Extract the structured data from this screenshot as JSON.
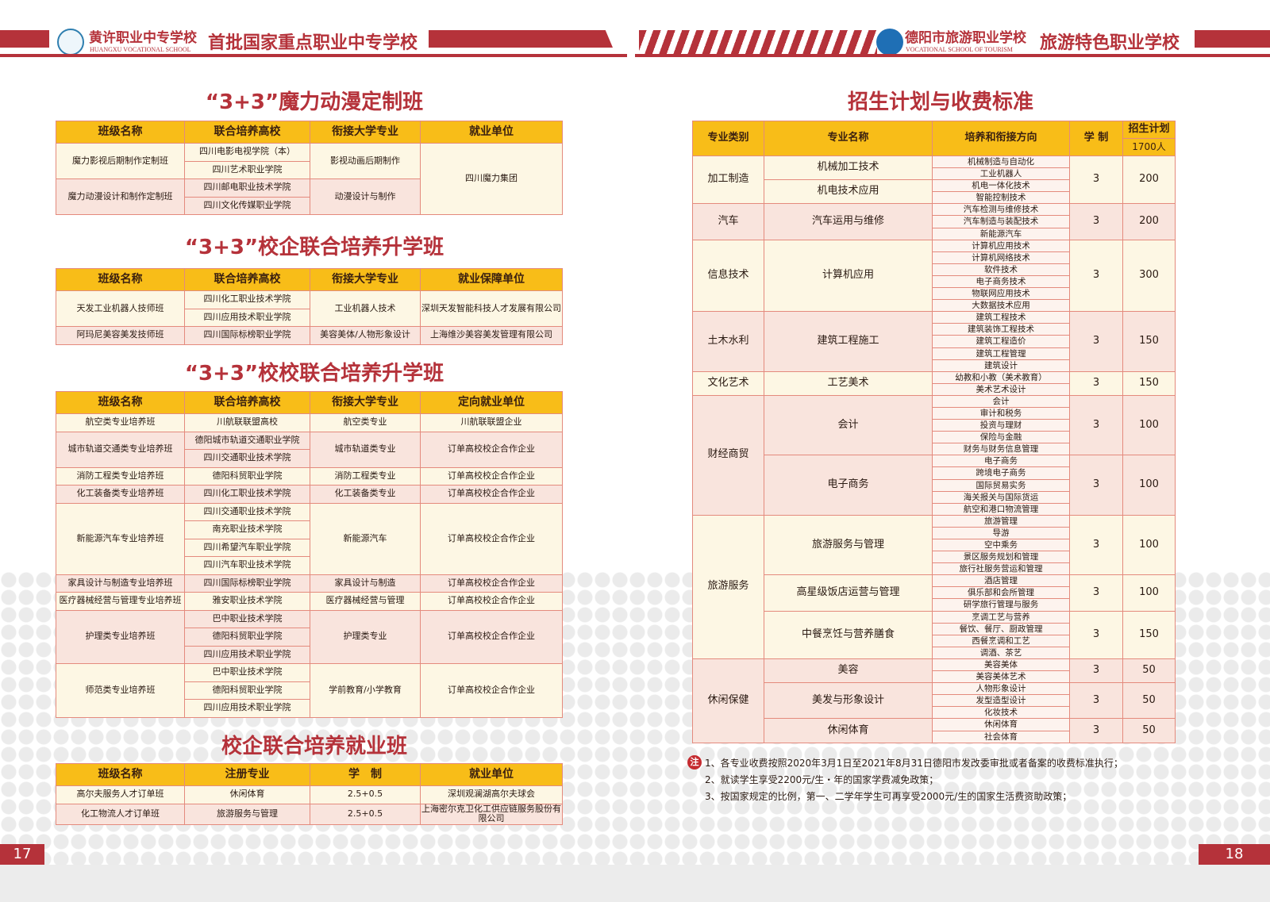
{
  "header": {
    "left_school": "黄许职业中专学校",
    "left_school_en": "HUANGXU VOCATIONAL SCHOOL",
    "left_slogan": "首批国家重点职业中专学校",
    "right_school": "德阳市旅游职业学校",
    "right_school_en": "VOCATIONAL SCHOOL OF TOURISM",
    "right_slogan": "旅游特色职业学校",
    "brand_color": "#b5323a",
    "header_fill": "#f8bd18"
  },
  "left": {
    "tables": [
      {
        "title": "“3+3”魔力动漫定制班",
        "headers": [
          "班级名称",
          "联合培养高校",
          "衔接大学专业",
          "就业单位"
        ],
        "merge_last": true,
        "groups": [
          {
            "name": "魔力影视后期制作定制班",
            "schools": [
              "四川电影电视学院（本）",
              "四川艺术职业学院"
            ],
            "major": "影视动画后期制作",
            "employer": "四川魔力集团"
          },
          {
            "name": "魔力动漫设计和制作定制班",
            "schools": [
              "四川邮电职业技术学院",
              "四川文化传媒职业学院"
            ],
            "major": "动漫设计与制作",
            "employer": "四川魔力集团"
          }
        ]
      },
      {
        "title": "“3+3”校企联合培养升学班",
        "headers": [
          "班级名称",
          "联合培养高校",
          "衔接大学专业",
          "就业保障单位"
        ],
        "groups": [
          {
            "name": "天发工业机器人技师班",
            "schools": [
              "四川化工职业技术学院",
              "四川应用技术职业学院"
            ],
            "major": "工业机器人技术",
            "employer": "深圳天发智能科技人才发展有限公司"
          },
          {
            "name": "阿玛尼美容美发技师班",
            "schools": [
              "四川国际标榜职业学院"
            ],
            "major": "美容美体/人物形象设计",
            "employer": "上海维沙美容美发管理有限公司"
          }
        ]
      },
      {
        "title": "“3+3”校校联合培养升学班",
        "headers": [
          "班级名称",
          "联合培养高校",
          "衔接大学专业",
          "定向就业单位"
        ],
        "groups": [
          {
            "name": "航空类专业培养班",
            "schools": [
              "川航联联盟高校"
            ],
            "major": "航空类专业",
            "employer": "川航联联盟企业"
          },
          {
            "name": "城市轨道交通类专业培养班",
            "schools": [
              "德阳城市轨道交通职业学院",
              "四川交通职业技术学院"
            ],
            "major": "城市轨道类专业",
            "employer": "订单高校校企合作企业"
          },
          {
            "name": "消防工程类专业培养班",
            "schools": [
              "德阳科贸职业学院"
            ],
            "major": "消防工程类专业",
            "employer": "订单高校校企合作企业"
          },
          {
            "name": "化工装备类专业培养班",
            "schools": [
              "四川化工职业技术学院"
            ],
            "major": "化工装备类专业",
            "employer": "订单高校校企合作企业"
          },
          {
            "name": "新能源汽车专业培养班",
            "schools": [
              "四川交通职业技术学院",
              "南充职业技术学院",
              "四川希望汽车职业学院",
              "四川汽车职业技术学院"
            ],
            "major": "新能源汽车",
            "employer": "订单高校校企合作企业"
          },
          {
            "name": "家具设计与制造专业培养班",
            "schools": [
              "四川国际标榜职业学院"
            ],
            "major": "家具设计与制造",
            "employer": "订单高校校企合作企业"
          },
          {
            "name": "医疗器械经营与管理专业培养班",
            "schools": [
              "雅安职业技术学院"
            ],
            "major": "医疗器械经营与管理",
            "employer": "订单高校校企合作企业"
          },
          {
            "name": "护理类专业培养班",
            "schools": [
              "巴中职业技术学院",
              "德阳科贸职业学院",
              "四川应用技术职业学院"
            ],
            "major": "护理类专业",
            "employer": "订单高校校企合作企业"
          },
          {
            "name": "师范类专业培养班",
            "schools": [
              "巴中职业技术学院",
              "德阳科贸职业学院",
              "四川应用技术职业学院"
            ],
            "major": "学前教育/小学教育",
            "employer": "订单高校校企合作企业"
          }
        ]
      },
      {
        "title": "校企联合培养就业班",
        "headers": [
          "班级名称",
          "注册专业",
          "学　制",
          "就业单位"
        ],
        "groups": [
          {
            "name": "高尔夫服务人才订单班",
            "schools": [
              "休闲体育"
            ],
            "major": "2.5+0.5",
            "employer": "深圳观澜湖高尔夫球会"
          },
          {
            "name": "化工物流人才订单班",
            "schools": [
              "旅游服务与管理"
            ],
            "major": "2.5+0.5",
            "employer": "上海密尔克卫化工供应链服务股份有限公司"
          }
        ]
      }
    ],
    "page_number": "17"
  },
  "right": {
    "title": "招生计划与收费标准",
    "headers": {
      "category": "专业类别",
      "major": "专业名称",
      "direction": "培养和衔接方向",
      "years": "学 制",
      "plan": "招生计划",
      "plan_total": "1700人"
    },
    "categories": [
      {
        "name": "加工制造",
        "majors": [
          {
            "name": "机械加工技术",
            "directions": [
              "机械制造与自动化",
              "工业机器人"
            ]
          },
          {
            "name": "机电技术应用",
            "directions": [
              "机电一体化技术",
              "智能控制技术"
            ]
          }
        ],
        "years": "3",
        "plan": "200"
      },
      {
        "name": "汽车",
        "majors": [
          {
            "name": "汽车运用与维修",
            "directions": [
              "汽车检测与维修技术",
              "汽车制造与装配技术",
              "新能源汽车"
            ],
            "years": "3",
            "plan": "200"
          }
        ]
      },
      {
        "name": "信息技术",
        "majors": [
          {
            "name": "计算机应用",
            "directions": [
              "计算机应用技术",
              "计算机网络技术",
              "软件技术",
              "电子商务技术",
              "物联网应用技术",
              "大数据技术应用"
            ],
            "years": "3",
            "plan": "300"
          }
        ]
      },
      {
        "name": "土木水利",
        "majors": [
          {
            "name": "建筑工程施工",
            "directions": [
              "建筑工程技术",
              "建筑装饰工程技术",
              "建筑工程造价",
              "建筑工程管理",
              "建筑设计"
            ],
            "years": "3",
            "plan": "150"
          }
        ]
      },
      {
        "name": "文化艺术",
        "majors": [
          {
            "name": "工艺美术",
            "directions": [
              "幼教和小教（美术教育）",
              "美术艺术设计"
            ],
            "years": "3",
            "plan": "150"
          }
        ]
      },
      {
        "name": "财经商贸",
        "majors": [
          {
            "name": "会计",
            "directions": [
              "会计",
              "审计和税务",
              "投资与理财",
              "保险与金融",
              "财务与财务信息管理"
            ],
            "years": "3",
            "plan": "100"
          },
          {
            "name": "电子商务",
            "directions": [
              "电子商务",
              "跨境电子商务",
              "国际贸易实务",
              "海关报关与国际货运",
              "航空和港口物流管理"
            ],
            "years": "3",
            "plan": "100"
          }
        ]
      },
      {
        "name": "旅游服务",
        "majors": [
          {
            "name": "旅游服务与管理",
            "directions": [
              "旅游管理",
              "导游",
              "空中乘务",
              "景区服务规划和管理",
              "旅行社服务营运和管理"
            ],
            "years": "3",
            "plan": "100"
          },
          {
            "name": "高星级饭店运营与管理",
            "directions": [
              "酒店管理",
              "俱乐部和会所管理",
              "研学旅行管理与服务"
            ],
            "years": "3",
            "plan": "100"
          },
          {
            "name": "中餐烹饪与营养膳食",
            "directions": [
              "烹调工艺与营养",
              "餐饮、餐厅、厨政管理",
              "西餐烹调和工艺",
              "调酒、茶艺"
            ],
            "years": "3",
            "plan": "150"
          }
        ]
      },
      {
        "name": "休闲保健",
        "majors": [
          {
            "name": "美容",
            "directions": [
              "美容美体",
              "美容美体艺术"
            ],
            "years": "3",
            "plan": "50"
          },
          {
            "name": "美发与形象设计",
            "directions": [
              "人物形象设计",
              "发型造型设计",
              "化妆技术"
            ],
            "years": "3",
            "plan": "50"
          },
          {
            "name": "休闲体育",
            "directions": [
              "休闲体育",
              "社会体育"
            ],
            "years": "3",
            "plan": "50"
          }
        ]
      }
    ],
    "note_badge": "注",
    "notes": [
      "1、各专业收费按照2020年3月1日至2021年8月31日德阳市发改委审批或者备案的收费标准执行；",
      "2、就读学生享受2200元/生・年的国家学费减免政策；",
      "3、按国家规定的比例，第一、二学年学生可再享受2000元/生的国家生活费资助政策；"
    ],
    "page_number": "18"
  }
}
